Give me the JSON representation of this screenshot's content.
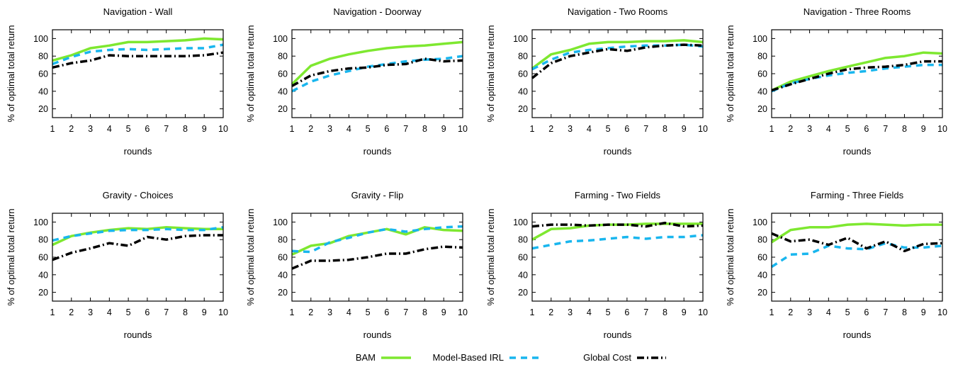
{
  "colors": {
    "BAM": "#7ee830",
    "Model-Based IRL": "#19b6ee",
    "Global Cost": "#000000"
  },
  "legend": {
    "placement": "bottom-center",
    "items": [
      "BAM",
      "Model-Based IRL",
      "Global Cost"
    ]
  },
  "chart_data": [
    {
      "type": "line",
      "title": "Navigation - Wall",
      "xlabel": "rounds",
      "ylabel": "% of optimal total return",
      "x": [
        1,
        2,
        3,
        4,
        5,
        6,
        7,
        8,
        9,
        10
      ],
      "xticks": [
        "1",
        "2",
        "3",
        "4",
        "5",
        "6",
        "7",
        "8",
        "9",
        "10"
      ],
      "yticks": [
        "20",
        "40",
        "60",
        "80",
        "100"
      ],
      "ylim": [
        10,
        110
      ],
      "grid": false,
      "series": [
        {
          "name": "BAM",
          "values": [
            75,
            81,
            89,
            92,
            96,
            96,
            97,
            98,
            100,
            99
          ]
        },
        {
          "name": "Model-Based IRL",
          "values": [
            71,
            79,
            85,
            87,
            88,
            87,
            88,
            89,
            89,
            93
          ]
        },
        {
          "name": "Global Cost",
          "values": [
            67,
            72,
            75,
            81,
            80,
            80,
            80,
            80,
            81,
            84
          ]
        }
      ]
    },
    {
      "type": "line",
      "title": "Navigation - Doorway",
      "xlabel": "rounds",
      "ylabel": "% of optimal total return",
      "x": [
        1,
        2,
        3,
        4,
        5,
        6,
        7,
        8,
        9,
        10
      ],
      "xticks": [
        "1",
        "2",
        "3",
        "4",
        "5",
        "6",
        "7",
        "8",
        "9",
        "10"
      ],
      "yticks": [
        "20",
        "40",
        "60",
        "80",
        "100"
      ],
      "ylim": [
        10,
        110
      ],
      "grid": false,
      "series": [
        {
          "name": "BAM",
          "values": [
            48,
            69,
            77,
            82,
            86,
            89,
            91,
            92,
            94,
            96
          ]
        },
        {
          "name": "Model-Based IRL",
          "values": [
            40,
            51,
            58,
            63,
            68,
            71,
            74,
            76,
            77,
            80
          ]
        },
        {
          "name": "Global Cost",
          "values": [
            46,
            58,
            63,
            66,
            67,
            70,
            71,
            77,
            74,
            75
          ]
        }
      ]
    },
    {
      "type": "line",
      "title": "Navigation - Two Rooms",
      "xlabel": "rounds",
      "ylabel": "% of optimal total return",
      "x": [
        1,
        2,
        3,
        4,
        5,
        6,
        7,
        8,
        9,
        10
      ],
      "xticks": [
        "1",
        "2",
        "3",
        "4",
        "5",
        "6",
        "7",
        "8",
        "9",
        "10"
      ],
      "yticks": [
        "20",
        "40",
        "60",
        "80",
        "100"
      ],
      "ylim": [
        10,
        110
      ],
      "grid": false,
      "series": [
        {
          "name": "BAM",
          "values": [
            66,
            82,
            87,
            94,
            96,
            96,
            97,
            97,
            98,
            96
          ]
        },
        {
          "name": "Model-Based IRL",
          "values": [
            65,
            76,
            84,
            87,
            89,
            91,
            92,
            92,
            93,
            91
          ]
        },
        {
          "name": "Global Cost",
          "values": [
            55,
            72,
            80,
            84,
            88,
            86,
            90,
            92,
            93,
            92
          ]
        }
      ]
    },
    {
      "type": "line",
      "title": "Navigation - Three Rooms",
      "xlabel": "rounds",
      "ylabel": "% of optimal total return",
      "x": [
        1,
        2,
        3,
        4,
        5,
        6,
        7,
        8,
        9,
        10
      ],
      "xticks": [
        "1",
        "2",
        "3",
        "4",
        "5",
        "6",
        "7",
        "8",
        "9",
        "10"
      ],
      "yticks": [
        "20",
        "40",
        "60",
        "80",
        "100"
      ],
      "ylim": [
        10,
        110
      ],
      "grid": false,
      "series": [
        {
          "name": "BAM",
          "values": [
            41,
            51,
            57,
            63,
            68,
            73,
            78,
            80,
            84,
            83
          ]
        },
        {
          "name": "Model-Based IRL",
          "values": [
            40,
            49,
            54,
            58,
            61,
            63,
            66,
            68,
            70,
            70
          ]
        },
        {
          "name": "Global Cost",
          "values": [
            41,
            48,
            54,
            60,
            65,
            67,
            68,
            70,
            74,
            74
          ]
        }
      ]
    },
    {
      "type": "line",
      "title": "Gravity - Choices",
      "xlabel": "rounds",
      "ylabel": "% of optimal total return",
      "x": [
        1,
        2,
        3,
        4,
        5,
        6,
        7,
        8,
        9,
        10
      ],
      "xticks": [
        "1",
        "2",
        "3",
        "4",
        "5",
        "6",
        "7",
        "8",
        "9",
        "10"
      ],
      "yticks": [
        "20",
        "40",
        "60",
        "80",
        "100"
      ],
      "ylim": [
        10,
        110
      ],
      "grid": false,
      "series": [
        {
          "name": "BAM",
          "values": [
            74,
            84,
            88,
            91,
            93,
            92,
            94,
            93,
            92,
            92
          ]
        },
        {
          "name": "Model-Based IRL",
          "values": [
            79,
            84,
            87,
            90,
            91,
            91,
            92,
            91,
            91,
            94
          ]
        },
        {
          "name": "Global Cost",
          "values": [
            57,
            65,
            70,
            76,
            73,
            83,
            80,
            84,
            85,
            85
          ]
        }
      ]
    },
    {
      "type": "line",
      "title": "Gravity - Flip",
      "xlabel": "rounds",
      "ylabel": "% of optimal total return",
      "x": [
        1,
        2,
        3,
        4,
        5,
        6,
        7,
        8,
        9,
        10
      ],
      "xticks": [
        "1",
        "2",
        "3",
        "4",
        "5",
        "6",
        "7",
        "8",
        "9",
        "10"
      ],
      "yticks": [
        "20",
        "40",
        "60",
        "80",
        "100"
      ],
      "ylim": [
        10,
        110
      ],
      "grid": false,
      "series": [
        {
          "name": "BAM",
          "values": [
            63,
            73,
            76,
            84,
            88,
            92,
            86,
            94,
            91,
            90
          ]
        },
        {
          "name": "Model-Based IRL",
          "values": [
            67,
            66,
            77,
            82,
            88,
            92,
            89,
            92,
            94,
            95
          ]
        },
        {
          "name": "Global Cost",
          "values": [
            47,
            56,
            56,
            57,
            60,
            64,
            64,
            69,
            72,
            71
          ]
        }
      ]
    },
    {
      "type": "line",
      "title": "Farming - Two Fields",
      "xlabel": "rounds",
      "ylabel": "% of optimal total return",
      "x": [
        1,
        2,
        3,
        4,
        5,
        6,
        7,
        8,
        9,
        10
      ],
      "xticks": [
        "1",
        "2",
        "3",
        "4",
        "5",
        "6",
        "7",
        "8",
        "9",
        "10"
      ],
      "yticks": [
        "20",
        "40",
        "60",
        "80",
        "100"
      ],
      "ylim": [
        10,
        110
      ],
      "grid": false,
      "series": [
        {
          "name": "BAM",
          "values": [
            80,
            92,
            93,
            96,
            97,
            97,
            98,
            98,
            98,
            98
          ]
        },
        {
          "name": "Model-Based IRL",
          "values": [
            70,
            74,
            78,
            79,
            81,
            83,
            81,
            83,
            83,
            85
          ]
        },
        {
          "name": "Global Cost",
          "values": [
            95,
            97,
            97,
            96,
            97,
            97,
            95,
            99,
            95,
            96
          ]
        }
      ]
    },
    {
      "type": "line",
      "title": "Farming - Three Fields",
      "xlabel": "rounds",
      "ylabel": "% of optimal total return",
      "x": [
        1,
        2,
        3,
        4,
        5,
        6,
        7,
        8,
        9,
        10
      ],
      "xticks": [
        "1",
        "2",
        "3",
        "4",
        "5",
        "6",
        "7",
        "8",
        "9",
        "10"
      ],
      "yticks": [
        "20",
        "40",
        "60",
        "80",
        "100"
      ],
      "ylim": [
        10,
        110
      ],
      "grid": false,
      "series": [
        {
          "name": "BAM",
          "values": [
            77,
            91,
            94,
            94,
            97,
            98,
            97,
            96,
            97,
            97
          ]
        },
        {
          "name": "Model-Based IRL",
          "values": [
            49,
            63,
            64,
            73,
            70,
            69,
            76,
            71,
            71,
            73
          ]
        },
        {
          "name": "Global Cost",
          "values": [
            87,
            78,
            80,
            74,
            82,
            70,
            78,
            67,
            75,
            76
          ]
        }
      ]
    }
  ]
}
